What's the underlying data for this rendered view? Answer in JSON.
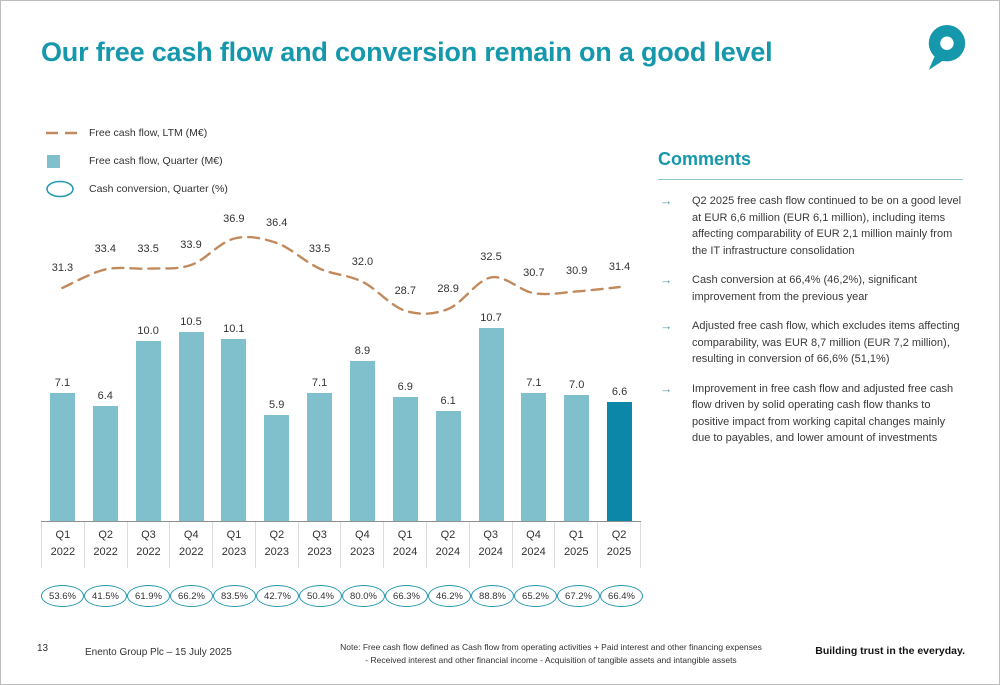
{
  "theme": {
    "accent": "#1598ac"
  },
  "slide": {
    "title": "Our free cash flow and conversion remain on a good level",
    "page_number": "13",
    "footer_left": "Enento Group Plc – 15 July 2025",
    "footer_note_line1": "Note: Free cash flow defined as Cash flow from operating activities + Paid interest and other financing expenses",
    "footer_note_line2": "- Received interest and other financial income - Acquisition of tangible assets and intangible assets",
    "footer_tagline": "Building trust in the everyday."
  },
  "legend": {
    "ltm": "Free cash flow, LTM (M€)",
    "quarter": "Free cash flow, Quarter (M€)",
    "conversion": "Cash conversion, Quarter (%)"
  },
  "comments": {
    "heading": "Comments",
    "items": [
      "Q2 2025 free cash flow continued to be on a good level at EUR 6,6 million (EUR 6,1 million), including items affecting comparability of EUR 2,1 million mainly from the IT infrastructure consolidation",
      "Cash conversion at 66,4% (46,2%), significant improvement from the previous year",
      "Adjusted free cash flow, which excludes items affecting comparability, was EUR 8,7 million (EUR 7,2 million), resulting in conversion of 66,6% (51,1%)",
      "Improvement in free cash flow and adjusted free cash flow driven by solid operating cash flow thanks to positive impact from working capital changes mainly due to payables, and lower amount of investments"
    ]
  },
  "chart_data": {
    "type": "bar",
    "categories": [
      "Q1 2022",
      "Q2 2022",
      "Q3 2022",
      "Q4 2022",
      "Q1 2023",
      "Q2 2023",
      "Q3 2023",
      "Q4 2023",
      "Q1 2024",
      "Q2 2024",
      "Q3 2024",
      "Q4 2024",
      "Q1 2025",
      "Q2 2025"
    ],
    "series": [
      {
        "name": "Free cash flow, Quarter (M€)",
        "type": "bar",
        "values": [
          7.1,
          6.4,
          10.0,
          10.5,
          10.1,
          5.9,
          7.1,
          8.9,
          6.9,
          6.1,
          10.7,
          7.1,
          7.0,
          6.6
        ]
      },
      {
        "name": "Free cash flow, LTM (M€)",
        "type": "line",
        "values": [
          31.3,
          33.4,
          33.5,
          33.9,
          36.9,
          36.4,
          33.5,
          32.0,
          28.7,
          28.9,
          32.5,
          30.7,
          30.9,
          31.4
        ]
      },
      {
        "name": "Cash conversion, Quarter (%)",
        "type": "labels",
        "values": [
          "53.6%",
          "41.5%",
          "61.9%",
          "66.2%",
          "83.5%",
          "42.7%",
          "50.4%",
          "80.0%",
          "66.3%",
          "46.2%",
          "88.8%",
          "65.2%",
          "67.2%",
          "66.4%"
        ]
      }
    ],
    "highlight_index": 13,
    "colors": {
      "bar": "#7fc0cc",
      "bar_highlight": "#0c87a8",
      "line": "#c18a5c",
      "oval": "#2397ad"
    },
    "legend_position": "top-left",
    "grid": false
  }
}
